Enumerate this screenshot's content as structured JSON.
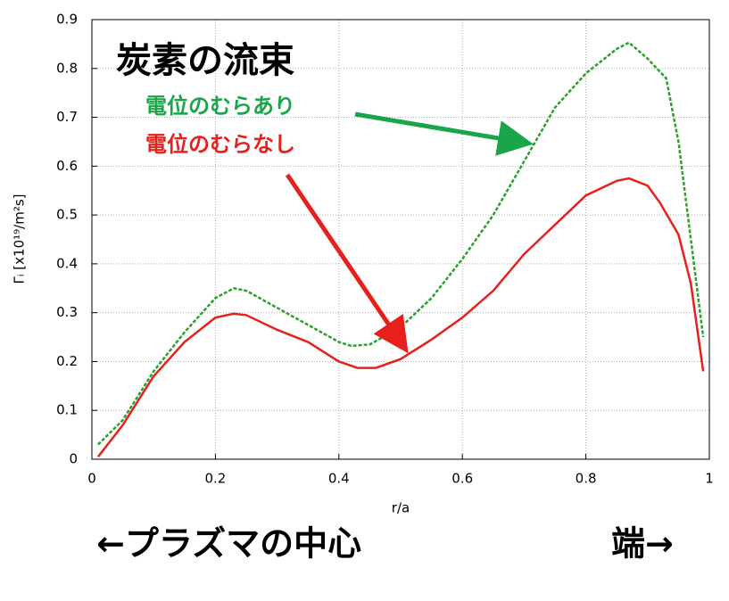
{
  "chart_data": {
    "type": "line",
    "title": "炭素の流束",
    "xlabel": "r/a",
    "ylabel": "Γᵢ [x10¹⁹/m²s]",
    "annotations": [
      "←プラズマの中心",
      "端→"
    ],
    "xlim": [
      0,
      1
    ],
    "xticks": [
      0,
      0.2,
      0.4,
      0.6,
      0.8,
      1
    ],
    "ylim": [
      0,
      0.9
    ],
    "yticks": [
      0,
      0.1,
      0.2,
      0.3,
      0.4,
      0.5,
      0.6,
      0.7,
      0.8,
      0.9
    ],
    "grid": true,
    "series": [
      {
        "name": "電位のむらあり",
        "color": "#2ca02c",
        "dashed": true,
        "x": [
          0.01,
          0.05,
          0.1,
          0.15,
          0.2,
          0.23,
          0.25,
          0.3,
          0.35,
          0.4,
          0.42,
          0.45,
          0.5,
          0.55,
          0.6,
          0.65,
          0.7,
          0.75,
          0.8,
          0.85,
          0.87,
          0.9,
          0.93,
          0.95,
          0.97,
          0.99
        ],
        "values": [
          0.03,
          0.08,
          0.18,
          0.26,
          0.33,
          0.35,
          0.345,
          0.31,
          0.275,
          0.24,
          0.232,
          0.235,
          0.27,
          0.33,
          0.41,
          0.5,
          0.61,
          0.72,
          0.79,
          0.84,
          0.853,
          0.82,
          0.78,
          0.65,
          0.45,
          0.25
        ]
      },
      {
        "name": "電位のむらなし",
        "color": "#e8201c",
        "dashed": false,
        "x": [
          0.01,
          0.05,
          0.1,
          0.15,
          0.2,
          0.23,
          0.25,
          0.3,
          0.35,
          0.4,
          0.43,
          0.46,
          0.5,
          0.55,
          0.6,
          0.65,
          0.7,
          0.75,
          0.8,
          0.85,
          0.87,
          0.9,
          0.92,
          0.95,
          0.97,
          0.99
        ],
        "values": [
          0.005,
          0.07,
          0.17,
          0.24,
          0.29,
          0.298,
          0.295,
          0.265,
          0.24,
          0.2,
          0.187,
          0.187,
          0.205,
          0.245,
          0.29,
          0.345,
          0.42,
          0.48,
          0.54,
          0.57,
          0.575,
          0.56,
          0.525,
          0.46,
          0.36,
          0.18
        ]
      }
    ]
  }
}
